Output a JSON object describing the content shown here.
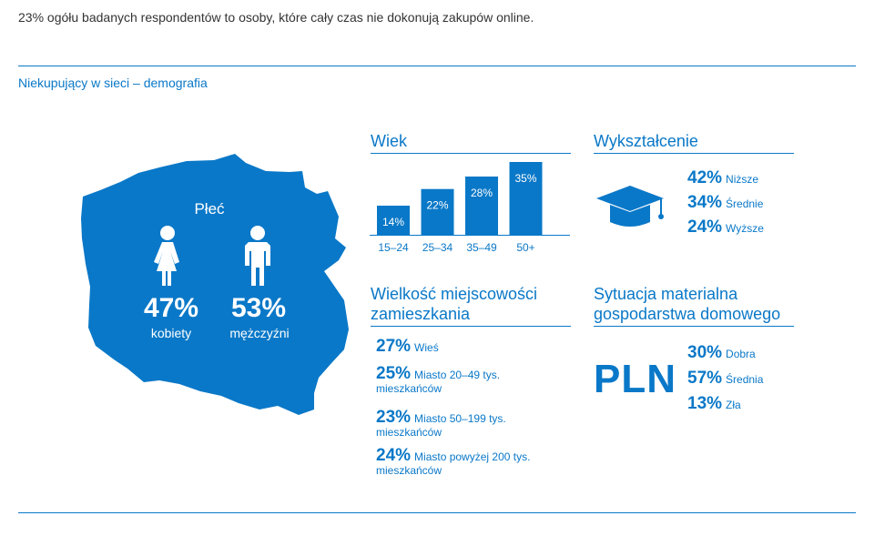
{
  "intro": "23% ogółu badanych respondentów to osoby, które cały czas nie dokonują zakupów online.",
  "section_title": "Niekupujący w sieci – demografia",
  "gender": {
    "title": "Płeć",
    "women_pct": "47%",
    "women_label": "kobiety",
    "men_pct": "53%",
    "men_label": "mężczyźni"
  },
  "age": {
    "title": "Wiek"
  },
  "education": {
    "title": "Wykształcenie",
    "items": [
      {
        "pct": "42%",
        "label": "Niższe"
      },
      {
        "pct": "34%",
        "label": "Średnie"
      },
      {
        "pct": "24%",
        "label": "Wyższe"
      }
    ]
  },
  "town": {
    "title_line1": "Wielkość miejscowości",
    "title_line2": "zamieszkania",
    "items": [
      {
        "pct": "27%",
        "label": "Wieś",
        "label2": ""
      },
      {
        "pct": "25%",
        "label": "Miasto 20–49 tys.",
        "label2": "mieszkańców"
      },
      {
        "pct": "23%",
        "label": "Miasto 50–199 tys.",
        "label2": "mieszkańców"
      },
      {
        "pct": "24%",
        "label": "Miasto powyżej 200 tys.",
        "label2": "mieszkańców"
      }
    ]
  },
  "material": {
    "title_line1": "Sytuacja materialna",
    "title_line2": "gospodarstwa domowego",
    "symbol": "PLN",
    "items": [
      {
        "pct": "30%",
        "label": "Dobra"
      },
      {
        "pct": "57%",
        "label": "Średnia"
      },
      {
        "pct": "13%",
        "label": "Zła"
      }
    ]
  },
  "colors": {
    "accent": "#0a78c8",
    "text": "#333333"
  },
  "chart_data": {
    "type": "bar",
    "categories": [
      "15–24",
      "25–34",
      "35–49",
      "50+"
    ],
    "values": [
      14,
      22,
      28,
      35
    ],
    "value_labels": [
      "14%",
      "22%",
      "28%",
      "35%"
    ],
    "title": "Wiek",
    "xlabel": "",
    "ylabel": "",
    "ylim": [
      0,
      35
    ],
    "grid": false
  }
}
